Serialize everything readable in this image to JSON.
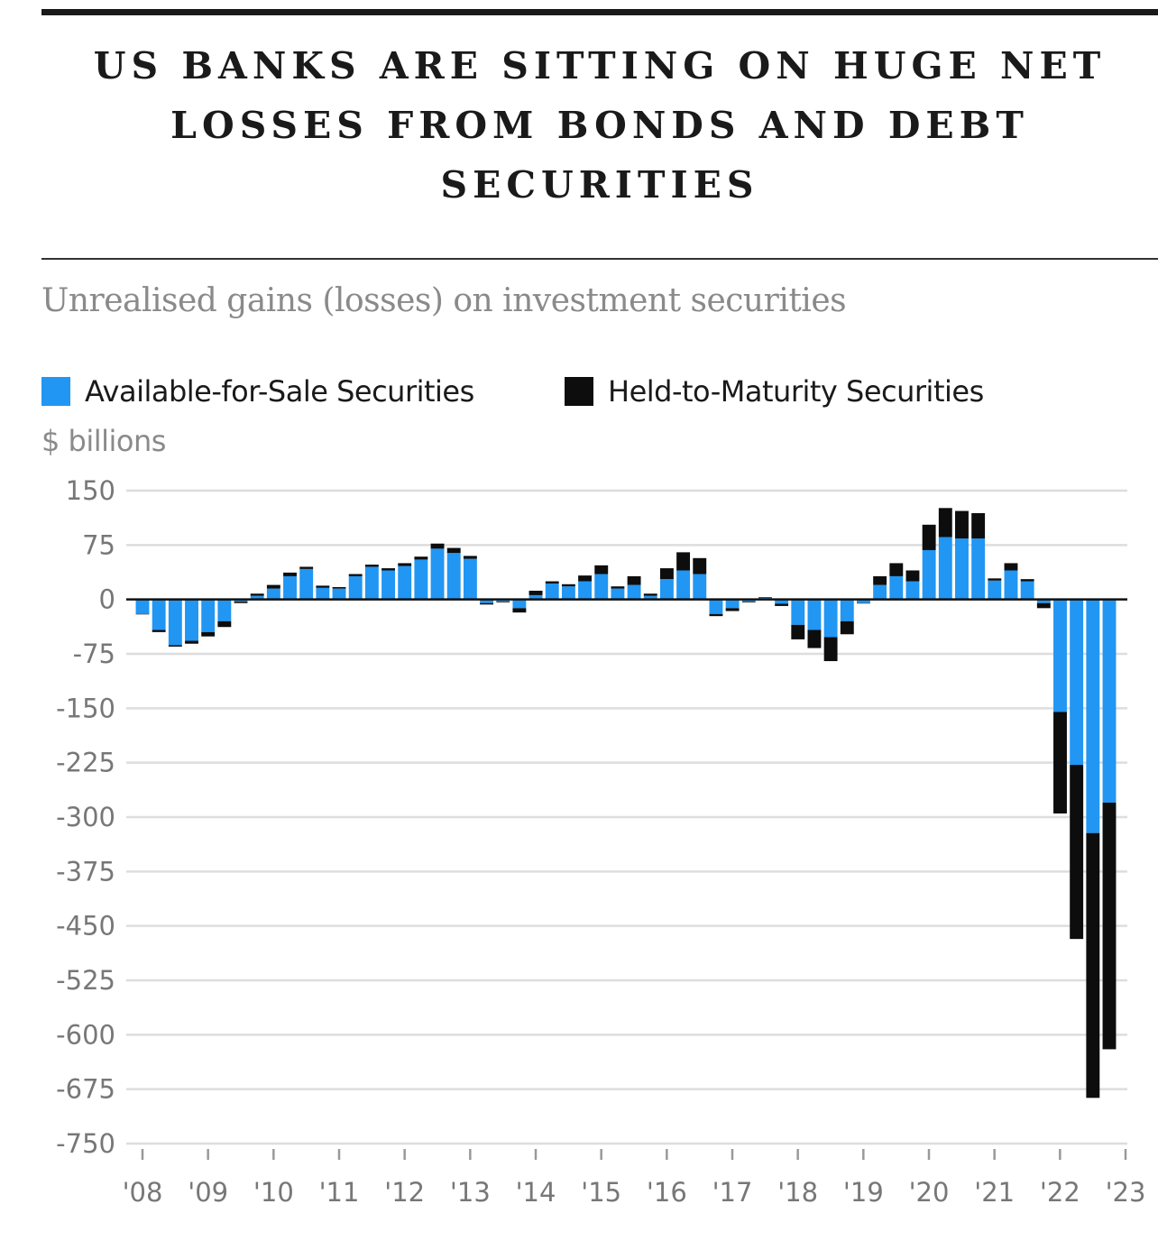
{
  "header": {
    "title_lines": [
      "US BANKS ARE SITTING ON HUGE NET",
      "LOSSES FROM BONDS AND DEBT",
      "SECURITIES"
    ],
    "subtitle": "Unrealised gains (losses) on investment securities"
  },
  "colors": {
    "afs": "#2196f3",
    "htm": "#0d0d0d",
    "grid": "#dddddd",
    "tick": "#777777",
    "zero": "#111111"
  },
  "chart_data": {
    "type": "bar",
    "stacked": true,
    "title": "US BANKS ARE SITTING ON HUGE NET LOSSES FROM BONDS AND DEBT SECURITIES",
    "subtitle": "Unrealised gains (losses) on investment securities",
    "ylabel": "$ billions",
    "ylim": [
      -750,
      150
    ],
    "yticks": [
      150,
      75,
      0,
      -75,
      -150,
      -225,
      -300,
      -375,
      -450,
      -525,
      -600,
      -675,
      -750
    ],
    "ytick_labels": [
      "150",
      "75",
      "0",
      "-75",
      "-150",
      "-225",
      "-300",
      "-375",
      "-450",
      "-525",
      "-600",
      "-675",
      "-750"
    ],
    "xlabels": [
      "'08",
      "'09",
      "'10",
      "'11",
      "'12",
      "'13",
      "'14",
      "'15",
      "'16",
      "'17",
      "'18",
      "'19",
      "'20",
      "'21",
      "'22",
      "'23"
    ],
    "grid": true,
    "legend": "top-left",
    "categories": [
      "2008Q1",
      "2008Q2",
      "2008Q3",
      "2008Q4",
      "2009Q1",
      "2009Q2",
      "2009Q3",
      "2009Q4",
      "2010Q1",
      "2010Q2",
      "2010Q3",
      "2010Q4",
      "2011Q1",
      "2011Q2",
      "2011Q3",
      "2011Q4",
      "2012Q1",
      "2012Q2",
      "2012Q3",
      "2012Q4",
      "2013Q1",
      "2013Q2",
      "2013Q3",
      "2013Q4",
      "2014Q1",
      "2014Q2",
      "2014Q3",
      "2014Q4",
      "2015Q1",
      "2015Q2",
      "2015Q3",
      "2015Q4",
      "2016Q1",
      "2016Q2",
      "2016Q3",
      "2016Q4",
      "2017Q1",
      "2017Q2",
      "2017Q3",
      "2017Q4",
      "2018Q1",
      "2018Q2",
      "2018Q3",
      "2018Q4",
      "2019Q1",
      "2019Q2",
      "2019Q3",
      "2019Q4",
      "2020Q1",
      "2020Q2",
      "2020Q3",
      "2020Q4",
      "2021Q1",
      "2021Q2",
      "2021Q3",
      "2021Q4",
      "2022Q1",
      "2022Q2",
      "2022Q3",
      "2022Q4"
    ],
    "series": [
      {
        "name": "Available-for-Sale Securities",
        "values": [
          -20,
          -42,
          -63,
          -57,
          -45,
          -30,
          -3,
          5,
          15,
          32,
          42,
          16,
          15,
          32,
          45,
          40,
          46,
          55,
          70,
          64,
          56,
          -5,
          -3,
          -12,
          12,
          22,
          18,
          25,
          35,
          15,
          20,
          5,
          28,
          40,
          35,
          -20,
          -12,
          -3,
          2,
          -6,
          -35,
          -42,
          -52,
          -30,
          -5,
          20,
          32,
          25,
          68,
          86,
          84,
          84,
          26,
          40,
          25,
          -5,
          -155,
          -228,
          -322,
          -280
        ],
        "color": "#2196f3"
      },
      {
        "name": "Held-to-Maturity Securities",
        "values": [
          0,
          -3,
          -2,
          -4,
          -6,
          -8,
          -2,
          3,
          5,
          5,
          3,
          3,
          2,
          3,
          3,
          3,
          4,
          4,
          7,
          7,
          4,
          -2,
          -1,
          -6,
          -6,
          3,
          3,
          8,
          12,
          3,
          12,
          3,
          15,
          25,
          22,
          -3,
          -4,
          -1,
          1,
          -3,
          -20,
          -25,
          -33,
          -18,
          0,
          12,
          18,
          15,
          35,
          40,
          38,
          35,
          3,
          10,
          3,
          -7,
          -140,
          -240,
          -365,
          -340
        ],
        "color": "#0d0d0d"
      }
    ]
  },
  "legend": {
    "afs_label": "Available-for-Sale Securities",
    "htm_label": "Held-to-Maturity Securities"
  },
  "axis": {
    "unit": "$ billions"
  }
}
